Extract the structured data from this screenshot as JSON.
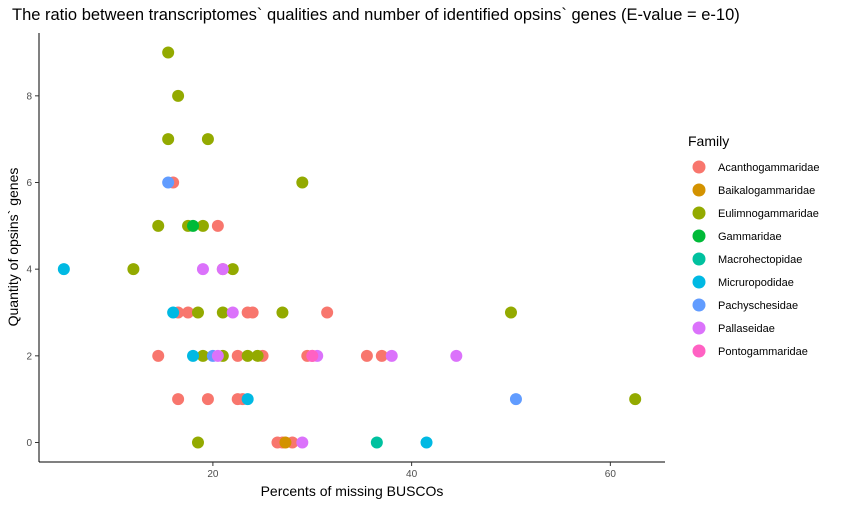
{
  "chart_data": {
    "type": "scatter",
    "title": "The ratio between transcriptomes` qualities and number of identified opsins` genes (E-value = e-10)",
    "xlabel": "Percents of missing BUSCOs",
    "ylabel": "Quantity of opsins` genes",
    "xlim": [
      2.5,
      65.5
    ],
    "ylim": [
      -0.45,
      9.45
    ],
    "x_ticks": [
      20,
      40,
      60
    ],
    "y_ticks": [
      0,
      2,
      4,
      6,
      8
    ],
    "grid": false,
    "legend": {
      "title": "Family",
      "position": "right"
    },
    "series": [
      {
        "name": "Acanthogammaridae",
        "color": "#F8766D",
        "points": [
          [
            16.0,
            6
          ],
          [
            20.5,
            5
          ],
          [
            21.0,
            4
          ],
          [
            16.5,
            3
          ],
          [
            17.5,
            3
          ],
          [
            23.5,
            3
          ],
          [
            24.0,
            3
          ],
          [
            31.5,
            3
          ],
          [
            14.5,
            2
          ],
          [
            22.5,
            2
          ],
          [
            25.0,
            2
          ],
          [
            29.5,
            2
          ],
          [
            30.0,
            2
          ],
          [
            35.5,
            2
          ],
          [
            37.0,
            2
          ],
          [
            16.5,
            1
          ],
          [
            19.5,
            1
          ],
          [
            22.5,
            1
          ],
          [
            23.0,
            1
          ],
          [
            26.5,
            0
          ],
          [
            27.0,
            0
          ],
          [
            28.0,
            0
          ]
        ]
      },
      {
        "name": "Baikalogammaridae",
        "color": "#D39200",
        "points": [
          [
            27.3,
            0
          ]
        ]
      },
      {
        "name": "Eulimnogammaridae",
        "color": "#93AA00",
        "points": [
          [
            15.5,
            9
          ],
          [
            16.5,
            8
          ],
          [
            15.5,
            7
          ],
          [
            19.5,
            7
          ],
          [
            29.0,
            6
          ],
          [
            14.5,
            5
          ],
          [
            17.5,
            5
          ],
          [
            19.0,
            5
          ],
          [
            12.0,
            4
          ],
          [
            22.0,
            4
          ],
          [
            18.5,
            3
          ],
          [
            21.0,
            3
          ],
          [
            27.0,
            3
          ],
          [
            50.0,
            3
          ],
          [
            19.0,
            2
          ],
          [
            21.0,
            2
          ],
          [
            23.5,
            2
          ],
          [
            24.5,
            2
          ],
          [
            62.5,
            1
          ],
          [
            18.5,
            0
          ]
        ]
      },
      {
        "name": "Gammaridae",
        "color": "#00BA38",
        "points": [
          [
            18.0,
            5
          ]
        ]
      },
      {
        "name": "Macrohectopidae",
        "color": "#00C19F",
        "points": [
          [
            36.5,
            0
          ]
        ]
      },
      {
        "name": "Micruropodidae",
        "color": "#00B9E3",
        "points": [
          [
            5.0,
            4
          ],
          [
            16.0,
            3
          ],
          [
            18.0,
            2
          ],
          [
            23.5,
            1
          ],
          [
            41.5,
            0
          ]
        ]
      },
      {
        "name": "Pachyschesidae",
        "color": "#619CFF",
        "points": [
          [
            15.5,
            6
          ],
          [
            20.0,
            2
          ],
          [
            50.5,
            1
          ]
        ]
      },
      {
        "name": "Pallaseidae",
        "color": "#DB72FB",
        "points": [
          [
            19.0,
            4
          ],
          [
            21.0,
            4
          ],
          [
            22.0,
            3
          ],
          [
            20.5,
            2
          ],
          [
            30.5,
            2
          ],
          [
            38.0,
            2
          ],
          [
            44.5,
            2
          ],
          [
            29.0,
            0
          ]
        ]
      },
      {
        "name": "Pontogammaridae",
        "color": "#FF61C3",
        "points": [
          [
            30.0,
            2
          ]
        ]
      }
    ]
  }
}
